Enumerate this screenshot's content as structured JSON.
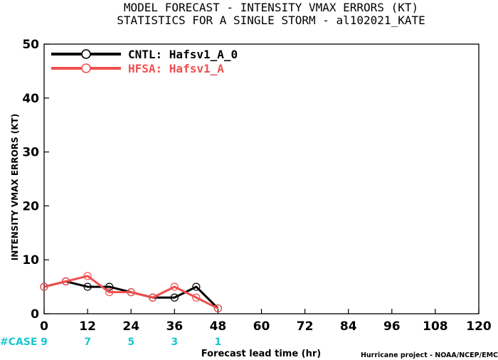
{
  "chart_data": {
    "type": "line",
    "title": "MODEL FORECAST - INTENSITY VMAX ERRORS (KT)",
    "subtitle": "STATISTICS FOR A SINGLE STORM - al102021_KATE",
    "xlabel": "Forecast lead time (hr)",
    "ylabel": "INTENSITY VMAX ERRORS (KT)",
    "xlim": [
      0,
      120
    ],
    "ylim": [
      0,
      50
    ],
    "x_ticks": [
      "0",
      "12",
      "24",
      "36",
      "48",
      "60",
      "72",
      "84",
      "96",
      "108",
      "120"
    ],
    "y_ticks": [
      "0",
      "10",
      "20",
      "30",
      "40",
      "50"
    ],
    "grid": false,
    "legend_position": "top-left",
    "series": [
      {
        "name": "CNTL: Hafsv1_A_0",
        "color": "#000000",
        "x": [
          0,
          6,
          12,
          18,
          24,
          30,
          36,
          42,
          48
        ],
        "y": [
          5,
          6,
          5,
          5,
          4,
          3,
          3,
          5,
          1
        ]
      },
      {
        "name": "HFSA: Hafsv1_A",
        "color": "#f04f4f",
        "x": [
          0,
          6,
          12,
          18,
          24,
          30,
          36,
          42,
          48
        ],
        "y": [
          5,
          6,
          7,
          4,
          4,
          3,
          5,
          3,
          1
        ]
      }
    ],
    "case_label": "#CASE",
    "case_color": "#19c8cf",
    "cases": [
      {
        "x": 0,
        "label": "9"
      },
      {
        "x": 12,
        "label": "7"
      },
      {
        "x": 24,
        "label": "5"
      },
      {
        "x": 36,
        "label": "3"
      },
      {
        "x": 48,
        "label": "1"
      }
    ],
    "credit": "Hurricane project - NOAA/NCEP/EMC"
  }
}
